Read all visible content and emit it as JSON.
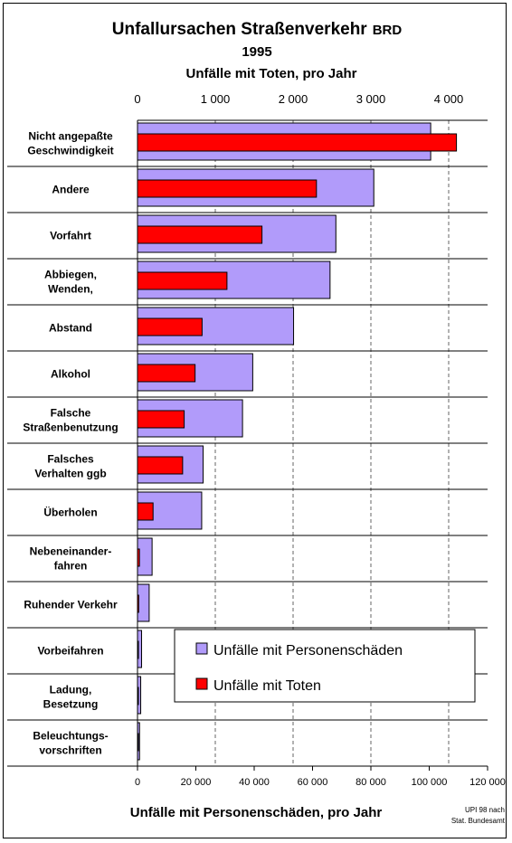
{
  "title": "Unfallursachen Straßenverkehr",
  "title_suffix": "BRD",
  "year": "1995",
  "top_axis_title": "Unfälle mit Toten, pro Jahr",
  "bottom_axis_title": "Unfälle mit Personenschäden, pro Jahr",
  "source": [
    "UPI 98 nach",
    "Stat. Bundesamt"
  ],
  "legend": {
    "series_injury": "Unfälle mit Personenschäden",
    "series_fatal": "Unfälle mit Toten"
  },
  "colors": {
    "injury_bar": "#b19bfa",
    "fatal_bar": "#ff0000",
    "grid": "#666666"
  },
  "chart_data": {
    "type": "bar",
    "orientation": "horizontal",
    "categories": [
      [
        "Nicht angepaßte",
        "Geschwindigkeit"
      ],
      [
        "Andere"
      ],
      [
        "Vorfahrt"
      ],
      [
        "Abbiegen,",
        "Wenden,"
      ],
      [
        "Abstand"
      ],
      [
        "Alkohol"
      ],
      [
        "Falsche",
        "Straßenbenutzung"
      ],
      [
        "Falsches",
        "Verhalten ggb"
      ],
      [
        "Überholen"
      ],
      [
        "Nebeneinander-",
        "fahren"
      ],
      [
        "Ruhender Verkehr"
      ],
      [
        "Vorbeifahren"
      ],
      [
        "Ladung,",
        "Besetzung"
      ],
      [
        "Beleuchtungs-",
        "vorschriften"
      ]
    ],
    "series": [
      {
        "name": "Unfälle mit Personenschäden",
        "axis": "bottom",
        "values": [
          100500,
          81000,
          68000,
          66000,
          53500,
          39500,
          36000,
          22500,
          22000,
          5000,
          4000,
          1400,
          1100,
          700
        ]
      },
      {
        "name": "Unfälle mit Toten",
        "axis": "top",
        "values": [
          4100,
          2300,
          1600,
          1150,
          830,
          740,
          600,
          580,
          200,
          25,
          15,
          10,
          8,
          5
        ]
      }
    ],
    "top_axis": {
      "range": [
        0,
        4500
      ],
      "ticks": [
        0,
        1000,
        2000,
        3000,
        4000
      ],
      "tick_labels": [
        "0",
        "1 000",
        "2 000",
        "3 000",
        "4 000"
      ]
    },
    "bottom_axis": {
      "range": [
        0,
        120000
      ],
      "ticks": [
        0,
        20000,
        40000,
        60000,
        80000,
        100000,
        120000
      ],
      "tick_labels": [
        "0",
        "20 000",
        "40 000",
        "60 000",
        "80 000",
        "100 000",
        "120 000"
      ]
    },
    "grid": "vertical dashed",
    "legend_position": "bottom-right"
  }
}
